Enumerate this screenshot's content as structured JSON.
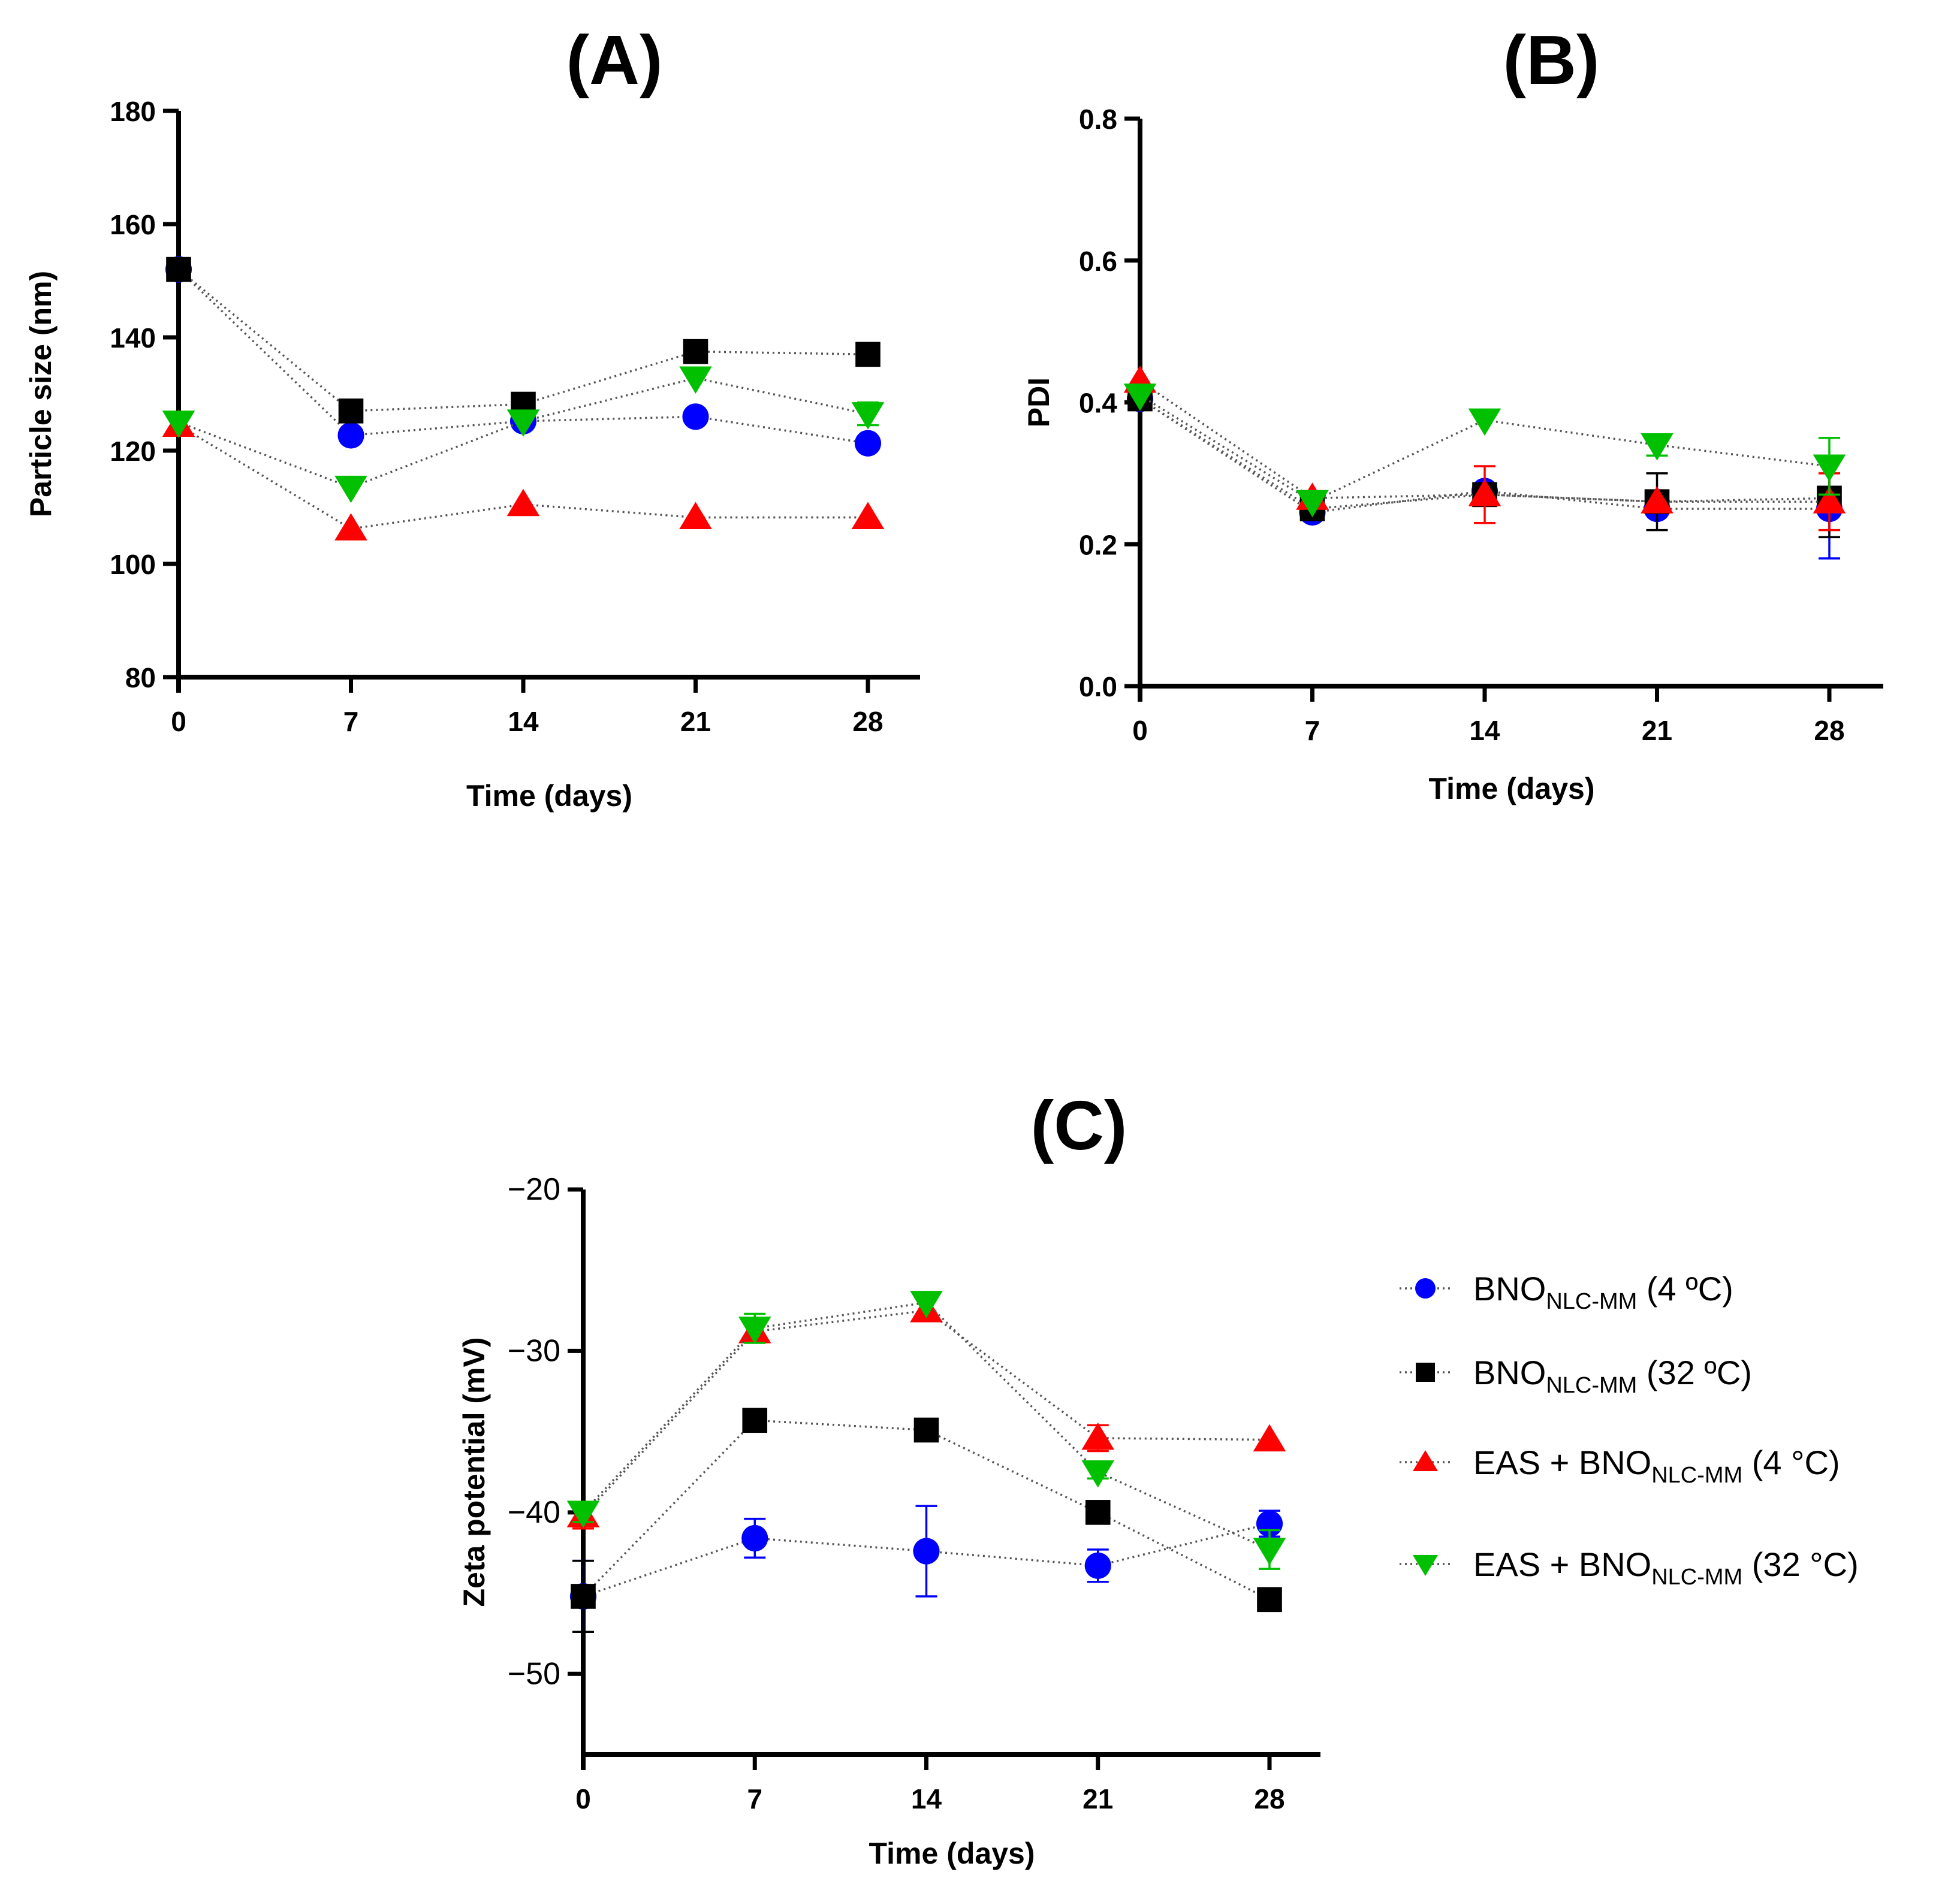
{
  "legend": [
    {
      "base": "BNO",
      "sub": "NLC-MM",
      "suffix": " (4 ºC)",
      "color": "#0000ff",
      "marker": "circle"
    },
    {
      "base": "BNO",
      "sub": "NLC-MM",
      "suffix": " (32 ºC)",
      "color": "#000000",
      "marker": "square"
    },
    {
      "base": "EAS + BNO",
      "sub": "NLC-MM",
      "suffix": " (4 °C)",
      "color": "#ff0000",
      "marker": "triangle-up"
    },
    {
      "base": "EAS + BNO",
      "sub": "NLC-MM",
      "suffix": " (32 °C)",
      "color": "#00c000",
      "marker": "triangle-down"
    }
  ],
  "chart_data": [
    {
      "id": "A",
      "type": "scatter",
      "title": "(A)",
      "xlabel": "Time (days)",
      "ylabel": "Particle size (nm)",
      "x": [
        0,
        7,
        14,
        21,
        28
      ],
      "xticks": [
        "0",
        "7",
        "14",
        "21",
        "28"
      ],
      "ylim": [
        80,
        180
      ],
      "yticks": [
        "80",
        "100",
        "120",
        "140",
        "160",
        "180"
      ],
      "ytick_values": [
        80,
        100,
        120,
        140,
        160,
        180
      ],
      "series": [
        {
          "name": "BNONLC-MM (4 ºC)",
          "color": "#0000ff",
          "marker": "circle",
          "values": [
            152,
            122.7,
            125.2,
            126,
            121.3
          ],
          "errors": [
            2,
            0,
            0,
            0,
            0
          ]
        },
        {
          "name": "BNONLC-MM (32 ºC)",
          "color": "#000000",
          "marker": "square",
          "values": [
            152,
            127,
            128.2,
            137.5,
            137
          ],
          "errors": [
            2,
            0,
            0,
            0,
            0
          ]
        },
        {
          "name": "EAS + BNONLC-MM (4 °C)",
          "color": "#ff0000",
          "marker": "triangle-up",
          "values": [
            124.5,
            106.2,
            110.5,
            108.2,
            108.2
          ],
          "errors": [
            0,
            0,
            0,
            0,
            0
          ]
        },
        {
          "name": "EAS + BNONLC-MM (32 °C)",
          "color": "#00c000",
          "marker": "triangle-down",
          "values": [
            125,
            113.5,
            125.2,
            132.8,
            126.5
          ],
          "errors": [
            0,
            0,
            0,
            0,
            2
          ]
        }
      ]
    },
    {
      "id": "B",
      "type": "scatter",
      "title": "(B)",
      "xlabel": "Time (days)",
      "ylabel": "PDI",
      "x": [
        0,
        7,
        14,
        21,
        28
      ],
      "xticks": [
        "0",
        "7",
        "14",
        "21",
        "28"
      ],
      "ylim": [
        0,
        0.8
      ],
      "yticks": [
        "0.0",
        "0.2",
        "0.4",
        "0.6",
        "0.8"
      ],
      "ytick_values": [
        0,
        0.2,
        0.4,
        0.6,
        0.8
      ],
      "series": [
        {
          "name": "BNONLC-MM (4 ºC)",
          "color": "#0000ff",
          "marker": "circle",
          "values": [
            0.405,
            0.245,
            0.275,
            0.25,
            0.25
          ],
          "errors": [
            0,
            0,
            0,
            0,
            0.07
          ]
        },
        {
          "name": "BNONLC-MM (32 ºC)",
          "color": "#000000",
          "marker": "square",
          "values": [
            0.405,
            0.25,
            0.27,
            0.26,
            0.265
          ],
          "errors": [
            0,
            0,
            0,
            0.04,
            0.055
          ]
        },
        {
          "name": "EAS + BNONLC-MM (4 °C)",
          "color": "#ff0000",
          "marker": "triangle-up",
          "values": [
            0.43,
            0.265,
            0.27,
            0.26,
            0.26
          ],
          "errors": [
            0,
            0.01,
            0.04,
            0,
            0.04
          ]
        },
        {
          "name": "EAS + BNONLC-MM (32 °C)",
          "color": "#00c000",
          "marker": "triangle-down",
          "values": [
            0.41,
            0.26,
            0.375,
            0.34,
            0.31
          ],
          "errors": [
            0,
            0,
            0,
            0.015,
            0.04
          ]
        }
      ]
    },
    {
      "id": "C",
      "type": "scatter",
      "title": "(C)",
      "xlabel": "Time (days)",
      "ylabel": "Zeta potential (mV)",
      "x": [
        0,
        7,
        14,
        21,
        28
      ],
      "xticks": [
        "0",
        "7",
        "14",
        "21",
        "28"
      ],
      "ylim": [
        -55,
        -20
      ],
      "yticks": [
        "−20",
        "−30",
        "−40",
        "−50"
      ],
      "ytick_values": [
        -20,
        -30,
        -40,
        -50
      ],
      "series": [
        {
          "name": "BNONLC-MM (4 ºC)",
          "color": "#0000ff",
          "marker": "circle",
          "values": [
            -45.2,
            -41.6,
            -42.4,
            -43.3,
            -40.7
          ],
          "errors": [
            2.2,
            1.2,
            2.8,
            1,
            0.8
          ]
        },
        {
          "name": "BNONLC-MM (32 ºC)",
          "color": "#000000",
          "marker": "square",
          "values": [
            -45.2,
            -34.3,
            -34.9,
            -40,
            -45.4
          ],
          "errors": [
            2.2,
            0,
            0,
            0,
            0
          ]
        },
        {
          "name": "EAS + BNONLC-MM (4 °C)",
          "color": "#ff0000",
          "marker": "triangle-up",
          "values": [
            -40.2,
            -28.8,
            -27.5,
            -35.4,
            -35.5
          ],
          "errors": [
            0.8,
            0,
            0,
            0.8,
            0
          ]
        },
        {
          "name": "EAS + BNONLC-MM (32 °C)",
          "color": "#00c000",
          "marker": "triangle-down",
          "values": [
            -40,
            -28.6,
            -27,
            -37.5,
            -42.3
          ],
          "errors": [
            0.6,
            0.9,
            0,
            0.4,
            1.2
          ]
        }
      ]
    }
  ]
}
